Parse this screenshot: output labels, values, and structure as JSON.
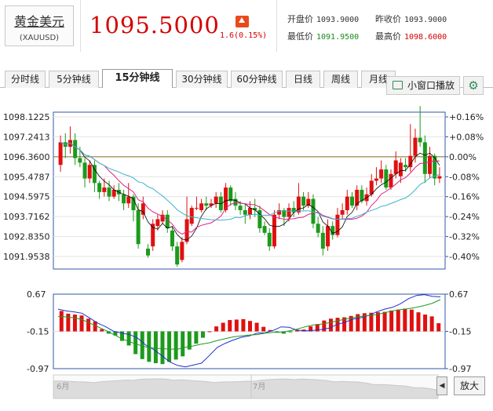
{
  "quote": {
    "name": "黄金美元",
    "code": "(XAUUSD)",
    "price": "1095.5000",
    "change": "1.6(0.15%)",
    "open_label": "开盘价",
    "open_value": "1093.9000",
    "prev_label": "昨收价",
    "prev_value": "1093.9000",
    "low_label": "最低价",
    "low_value": "1091.9500",
    "high_label": "最高价",
    "high_value": "1098.6000"
  },
  "tabs": [
    "分时线",
    "5分钟线",
    "15分钟线",
    "30分钟线",
    "60分钟线",
    "日线",
    "周线",
    "月线"
  ],
  "active_tab": "15分钟线",
  "toolbar": {
    "mini_window": "小窗口播放",
    "zoom": "放大",
    "nav_left": "◀",
    "nav_right": "▶"
  },
  "colors": {
    "up": "#e01010",
    "down": "#1c9a1c",
    "ma_fast": "#e0208a",
    "ma_slow": "#3cb4c8",
    "ma_black": "#000000",
    "grid": "#d0d0d0",
    "axis": "#3355aa"
  },
  "chart_data": [
    {
      "type": "candlestick",
      "y_left_ticks": [
        "1098.1225",
        "1097.2413",
        "1096.3600",
        "1095.4787",
        "1094.5975",
        "1093.7162",
        "1092.8350",
        "1091.9538"
      ],
      "y_right_ticks": [
        "+0.16%",
        "+0.08%",
        "0.00%",
        "-0.08%",
        "-0.16%",
        "-0.24%",
        "-0.32%",
        "-0.40%"
      ],
      "ylim": [
        1091.9538,
        1098.1225
      ],
      "reference_price": 1096.36,
      "candles": [
        [
          1096.0,
          1097.0,
          1097.3,
          1095.7
        ],
        [
          1097.0,
          1096.8,
          1097.4,
          1096.3
        ],
        [
          1096.8,
          1097.1,
          1097.7,
          1096.5
        ],
        [
          1097.1,
          1096.3,
          1097.4,
          1096.0
        ],
        [
          1096.3,
          1096.1,
          1096.8,
          1095.9
        ],
        [
          1096.1,
          1095.4,
          1096.3,
          1095.0
        ],
        [
          1095.4,
          1096.0,
          1096.2,
          1095.2
        ],
        [
          1096.0,
          1095.2,
          1096.2,
          1094.8
        ],
        [
          1095.2,
          1094.8,
          1095.3,
          1094.5
        ],
        [
          1094.8,
          1095.0,
          1095.4,
          1094.6
        ],
        [
          1095.0,
          1094.6,
          1095.3,
          1094.4
        ],
        [
          1094.6,
          1094.9,
          1095.1,
          1094.5
        ],
        [
          1094.9,
          1094.7,
          1095.2,
          1094.4
        ],
        [
          1094.7,
          1094.3,
          1094.9,
          1094.0
        ],
        [
          1094.3,
          1094.6,
          1095.2,
          1094.1
        ],
        [
          1094.6,
          1094.0,
          1094.7,
          1093.5
        ],
        [
          1094.0,
          1092.5,
          1094.3,
          1092.3
        ],
        [
          1093.8,
          1094.3,
          1094.6,
          1093.6
        ],
        [
          1092.3,
          1092.0,
          1092.5,
          1091.9
        ],
        [
          1092.4,
          1093.4,
          1093.6,
          1092.2
        ],
        [
          1093.3,
          1093.6,
          1093.8,
          1093.1
        ],
        [
          1093.5,
          1093.8,
          1094.0,
          1093.4
        ],
        [
          1093.8,
          1093.2,
          1094.0,
          1093.0
        ],
        [
          1093.1,
          1092.4,
          1093.3,
          1092.2
        ],
        [
          1092.4,
          1091.6,
          1092.6,
          1091.5
        ],
        [
          1091.8,
          1092.6,
          1092.8,
          1091.7
        ],
        [
          1092.6,
          1093.6,
          1094.6,
          1092.5
        ],
        [
          1093.4,
          1094.1,
          1094.2,
          1093.3
        ],
        [
          1094.1,
          1094.1,
          1094.6,
          1094.0
        ],
        [
          1094.0,
          1094.3,
          1094.5,
          1093.9
        ],
        [
          1094.3,
          1094.2,
          1094.6,
          1094.0
        ],
        [
          1094.2,
          1094.3,
          1094.5,
          1094.1
        ],
        [
          1094.3,
          1094.6,
          1094.8,
          1094.1
        ],
        [
          1094.6,
          1094.0,
          1094.8,
          1093.9
        ],
        [
          1094.0,
          1095.0,
          1095.2,
          1093.9
        ],
        [
          1095.0,
          1094.4,
          1095.1,
          1094.2
        ],
        [
          1094.5,
          1094.2,
          1094.8,
          1094.0
        ],
        [
          1094.2,
          1094.0,
          1094.4,
          1093.8
        ],
        [
          1094.0,
          1093.8,
          1094.3,
          1093.4
        ],
        [
          1093.8,
          1094.1,
          1094.4,
          1093.6
        ],
        [
          1094.1,
          1094.0,
          1094.5,
          1093.7
        ],
        [
          1094.0,
          1093.2,
          1094.2,
          1093.0
        ],
        [
          1093.3,
          1093.0,
          1093.5,
          1092.9
        ],
        [
          1093.0,
          1092.4,
          1093.2,
          1092.2
        ],
        [
          1092.4,
          1093.8,
          1094.0,
          1092.3
        ],
        [
          1093.8,
          1094.0,
          1094.3,
          1093.6
        ],
        [
          1094.0,
          1093.7,
          1094.1,
          1093.3
        ],
        [
          1093.7,
          1094.1,
          1094.3,
          1093.5
        ],
        [
          1094.1,
          1093.9,
          1094.4,
          1093.7
        ],
        [
          1093.9,
          1094.6,
          1095.2,
          1093.8
        ],
        [
          1094.6,
          1094.2,
          1094.8,
          1094.0
        ],
        [
          1094.2,
          1094.5,
          1094.8,
          1094.1
        ],
        [
          1094.5,
          1093.4,
          1094.7,
          1093.2
        ],
        [
          1093.4,
          1093.0,
          1093.7,
          1092.8
        ],
        [
          1093.0,
          1092.3,
          1093.3,
          1092.0
        ],
        [
          1092.4,
          1093.3,
          1093.6,
          1092.2
        ],
        [
          1093.3,
          1092.9,
          1093.5,
          1092.7
        ],
        [
          1092.9,
          1093.8,
          1094.1,
          1092.8
        ],
        [
          1093.8,
          1094.0,
          1094.3,
          1093.6
        ],
        [
          1094.0,
          1094.6,
          1094.9,
          1093.8
        ],
        [
          1094.6,
          1094.2,
          1094.8,
          1094.1
        ],
        [
          1094.2,
          1094.9,
          1095.1,
          1094.0
        ],
        [
          1094.9,
          1094.4,
          1095.1,
          1094.3
        ],
        [
          1094.4,
          1094.7,
          1095.0,
          1094.2
        ],
        [
          1094.7,
          1095.3,
          1095.6,
          1094.6
        ],
        [
          1095.3,
          1095.4,
          1095.9,
          1095.1
        ],
        [
          1095.4,
          1095.8,
          1096.2,
          1095.2
        ],
        [
          1095.8,
          1095.0,
          1096.0,
          1094.9
        ],
        [
          1095.0,
          1095.6,
          1095.8,
          1094.9
        ],
        [
          1095.6,
          1096.2,
          1096.6,
          1095.4
        ],
        [
          1095.5,
          1096.1,
          1096.3,
          1095.2
        ],
        [
          1096.0,
          1095.9,
          1096.3,
          1095.7
        ],
        [
          1095.9,
          1096.4,
          1097.8,
          1095.7
        ],
        [
          1096.4,
          1097.2,
          1097.6,
          1096.1
        ],
        [
          1097.2,
          1097.0,
          1098.6,
          1096.8
        ],
        [
          1097.0,
          1095.6,
          1097.3,
          1095.2
        ],
        [
          1095.6,
          1096.4,
          1096.8,
          1095.4
        ],
        [
          1096.4,
          1095.4,
          1096.5,
          1095.1
        ],
        [
          1095.4,
          1095.5,
          1095.9,
          1095.2
        ]
      ]
    },
    {
      "type": "histogram_with_lines",
      "y_ticks": [
        "0.67",
        "-0.15",
        "-0.97"
      ],
      "ylim": [
        -0.97,
        0.67
      ],
      "zero": -0.15,
      "bars": [
        0.45,
        0.39,
        0.37,
        0.35,
        0.28,
        0.22,
        0.05,
        -0.05,
        -0.09,
        -0.21,
        -0.31,
        -0.5,
        -0.61,
        -0.67,
        -0.7,
        -0.72,
        -0.67,
        -0.62,
        -0.55,
        -0.4,
        -0.27,
        -0.14,
        0.0,
        0.11,
        0.19,
        0.25,
        0.26,
        0.27,
        0.23,
        0.19,
        0.1,
        0.03,
        -0.02,
        -0.05,
        -0.02,
        0.03,
        0.04,
        0.11,
        0.16,
        0.24,
        0.28,
        0.3,
        0.31,
        0.34,
        0.38,
        0.4,
        0.41,
        0.42,
        0.43,
        0.46,
        0.48,
        0.5,
        0.48,
        0.42,
        0.37,
        0.33,
        0.18
      ],
      "line_blue": [
        0.34,
        0.3,
        0.28,
        0.25,
        0.14,
        0.03,
        -0.05,
        -0.15,
        -0.19,
        -0.22,
        -0.3,
        -0.45,
        -0.55,
        -0.68,
        -0.82,
        -0.9,
        -0.93,
        -0.89,
        -0.85,
        -0.68,
        -0.5,
        -0.41,
        -0.34,
        -0.28,
        -0.25,
        -0.19,
        -0.18,
        -0.13,
        -0.05,
        -0.06,
        -0.12,
        -0.14,
        -0.13,
        -0.11,
        -0.08,
        0.0,
        0.05,
        0.12,
        0.15,
        0.2,
        0.28,
        0.34,
        0.38,
        0.46,
        0.57,
        0.64,
        0.66,
        0.62,
        0.61
      ],
      "line_green": [
        0.18,
        0.17,
        0.15,
        0.11,
        0.03,
        -0.05,
        -0.13,
        -0.22,
        -0.31,
        -0.38,
        -0.44,
        -0.49,
        -0.52,
        -0.53,
        -0.54,
        -0.54,
        -0.5,
        -0.47,
        -0.43,
        -0.4,
        -0.35,
        -0.31,
        -0.27,
        -0.25,
        -0.23,
        -0.22,
        -0.19,
        -0.17,
        -0.17,
        -0.14,
        -0.1,
        -0.05,
        -0.01,
        0.01,
        0.04,
        0.08,
        0.12,
        0.15,
        0.18,
        0.2,
        0.22,
        0.26,
        0.3,
        0.33,
        0.35,
        0.38,
        0.42,
        0.47,
        0.55
      ]
    }
  ],
  "nav": {
    "month_labels": [
      "6月",
      "7月"
    ]
  }
}
